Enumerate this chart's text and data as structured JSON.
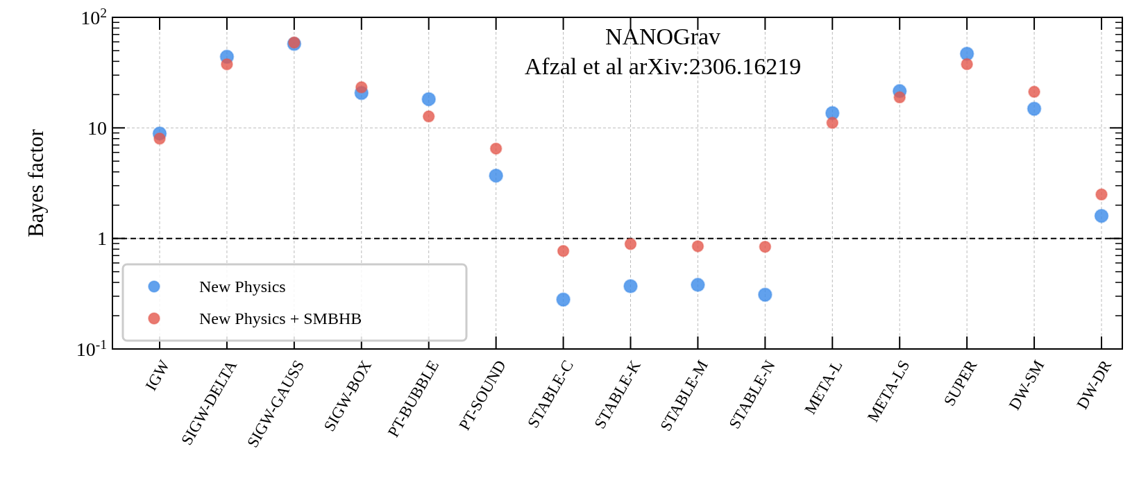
{
  "chart_data": {
    "type": "scatter",
    "ylabel": "Bayes factor",
    "categories": [
      "IGW",
      "SIGW-DELTA",
      "SIGW-GAUSS",
      "SIGW-BOX",
      "PT-BUBBLE",
      "PT-SOUND",
      "STABLE-C",
      "STABLE-K",
      "STABLE-M",
      "STABLE-N",
      "META-L",
      "META-LS",
      "SUPER",
      "DW-SM",
      "DW-DR"
    ],
    "series": [
      {
        "name": "New Physics",
        "color": "#3a8ae8",
        "values": [
          8.9,
          44,
          57.5,
          20.7,
          18.2,
          3.7,
          0.28,
          0.37,
          0.38,
          0.31,
          13.6,
          21.5,
          46.8,
          14.9,
          1.6
        ]
      },
      {
        "name": "New Physics + SMBHB",
        "color": "#e3574c",
        "values": [
          8.0,
          37.6,
          59.2,
          23.3,
          12.7,
          6.5,
          0.77,
          0.89,
          0.85,
          0.84,
          11.1,
          18.9,
          37.7,
          21.2,
          2.5
        ]
      }
    ],
    "log": true,
    "ylim": [
      0.1,
      100
    ],
    "yticks": [
      {
        "value": 0.1,
        "label": "10$^{-1}$"
      },
      1,
      10,
      {
        "value": 100,
        "label": "10$^{2}$"
      }
    ],
    "grid": true,
    "legend": "bottom left",
    "marker": "circle",
    "ref_lines": [
      {
        "axis": "y",
        "value": 1,
        "color": "#000000",
        "line_style": "dashed"
      }
    ],
    "annotations": [
      "NANOGrav",
      "Afzal et al arXiv:2306.16219"
    ]
  }
}
